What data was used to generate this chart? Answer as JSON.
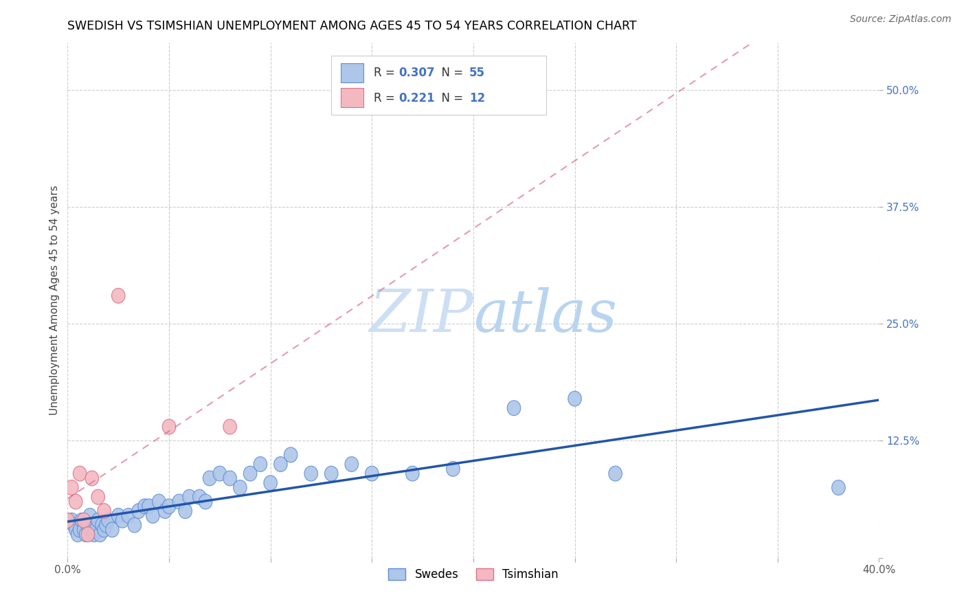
{
  "title": "SWEDISH VS TSIMSHIAN UNEMPLOYMENT AMONG AGES 45 TO 54 YEARS CORRELATION CHART",
  "source": "Source: ZipAtlas.com",
  "ylabel": "Unemployment Among Ages 45 to 54 years",
  "xlim": [
    0.0,
    0.4
  ],
  "ylim": [
    0.0,
    0.55
  ],
  "x_ticks": [
    0.0,
    0.05,
    0.1,
    0.15,
    0.2,
    0.25,
    0.3,
    0.35,
    0.4
  ],
  "y_ticks": [
    0.0,
    0.125,
    0.25,
    0.375,
    0.5
  ],
  "swedes_R": "0.307",
  "swedes_N": "55",
  "tsimshian_R": "0.221",
  "tsimshian_N": "12",
  "swedes_color": "#aec6e8",
  "swedes_edge_color": "#5b8dd9",
  "tsimshian_color": "#f4b8c1",
  "tsimshian_edge_color": "#d9708a",
  "trend_swedes_color": "#2255aa",
  "trend_tsimshian_color": "#d9708a",
  "watermark_color": "#cddff5",
  "grid_color": "#cccccc",
  "swedes_x": [
    0.002,
    0.003,
    0.004,
    0.005,
    0.006,
    0.007,
    0.008,
    0.009,
    0.01,
    0.011,
    0.012,
    0.013,
    0.014,
    0.015,
    0.016,
    0.017,
    0.018,
    0.019,
    0.02,
    0.022,
    0.025,
    0.027,
    0.03,
    0.033,
    0.035,
    0.038,
    0.04,
    0.042,
    0.045,
    0.048,
    0.05,
    0.055,
    0.058,
    0.06,
    0.065,
    0.068,
    0.07,
    0.075,
    0.08,
    0.085,
    0.09,
    0.095,
    0.1,
    0.105,
    0.11,
    0.12,
    0.13,
    0.14,
    0.15,
    0.17,
    0.19,
    0.22,
    0.25,
    0.27,
    0.38
  ],
  "swedes_y": [
    0.04,
    0.035,
    0.03,
    0.025,
    0.03,
    0.04,
    0.03,
    0.025,
    0.035,
    0.045,
    0.03,
    0.025,
    0.03,
    0.04,
    0.025,
    0.035,
    0.03,
    0.035,
    0.04,
    0.03,
    0.045,
    0.04,
    0.045,
    0.035,
    0.05,
    0.055,
    0.055,
    0.045,
    0.06,
    0.05,
    0.055,
    0.06,
    0.05,
    0.065,
    0.065,
    0.06,
    0.085,
    0.09,
    0.085,
    0.075,
    0.09,
    0.1,
    0.08,
    0.1,
    0.11,
    0.09,
    0.09,
    0.1,
    0.09,
    0.09,
    0.095,
    0.16,
    0.17,
    0.09,
    0.075
  ],
  "tsimshian_x": [
    0.0,
    0.002,
    0.004,
    0.006,
    0.008,
    0.01,
    0.012,
    0.015,
    0.018,
    0.025,
    0.05,
    0.08
  ],
  "tsimshian_y": [
    0.04,
    0.075,
    0.06,
    0.09,
    0.04,
    0.025,
    0.085,
    0.065,
    0.05,
    0.28,
    0.14,
    0.14
  ]
}
